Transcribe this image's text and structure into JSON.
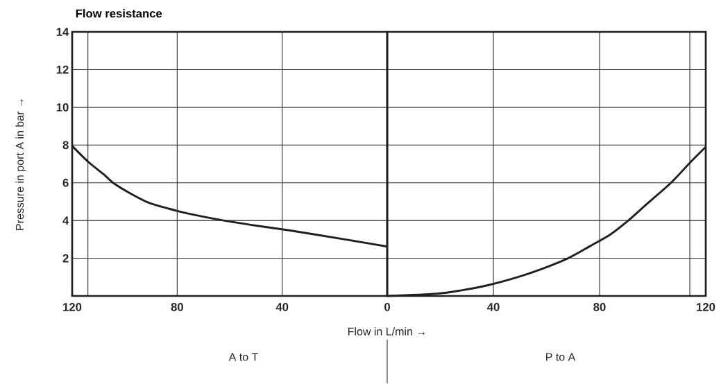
{
  "chart_data": [
    {
      "type": "line",
      "title": "Flow resistance",
      "xlabel": "Flow in L/min →",
      "ylabel": "Pressure in port A in bar →",
      "annotations": [
        "A to T"
      ],
      "xlim": [
        120,
        0
      ],
      "xticks": [
        120,
        {
          "value": 114,
          "label": null
        },
        80,
        40
      ],
      "ylim": [
        0,
        14
      ],
      "yticks": [
        2,
        4,
        6,
        8,
        10,
        12,
        14
      ],
      "grid": true,
      "series": [
        {
          "color": "#231f20",
          "x": [
            120,
            113.8,
            108,
            104.2,
            98,
            90.9,
            83,
            75.8,
            62.6,
            50,
            37.8,
            15.3,
            0.3
          ],
          "values": [
            7.95,
            7.1,
            6.45,
            5.98,
            5.45,
            4.95,
            4.62,
            4.37,
            4.01,
            3.73,
            3.49,
            2.98,
            2.63
          ]
        }
      ]
    },
    {
      "type": "line",
      "annotations": [
        "P to A"
      ],
      "xlim": [
        0,
        120
      ],
      "xticks": [
        0,
        40,
        80,
        {
          "value": 114,
          "label": null
        },
        120
      ],
      "ylim": [
        0,
        14
      ],
      "yticks": [
        2,
        4,
        6,
        8,
        10,
        12,
        14
      ],
      "grid": true,
      "tick_labels": "x",
      "series": [
        {
          "color": "#231f20",
          "x": [
            0,
            18.6,
            28,
            38.2,
            48,
            58,
            68.1,
            76.5,
            84,
            90.5,
            98,
            106.9,
            114.3,
            120
          ],
          "values": [
            0,
            0.12,
            0.3,
            0.58,
            0.95,
            1.42,
            2.0,
            2.65,
            3.25,
            3.96,
            4.9,
            6.0,
            7.1,
            7.9
          ]
        }
      ]
    }
  ]
}
